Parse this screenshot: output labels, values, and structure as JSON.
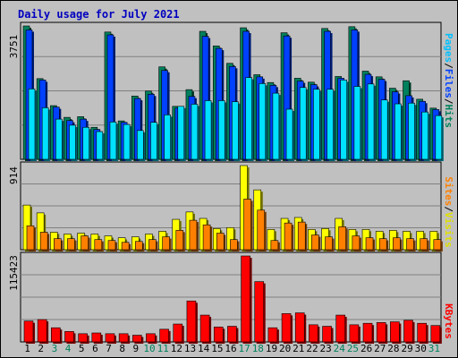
{
  "title": "Daily usage for July 2021",
  "colors": {
    "hits": "#00805c",
    "files": "#0040ff",
    "pages": "#00e0ff",
    "visits": "#ffff00",
    "sites": "#ff8000",
    "kbytes": "#ff0000",
    "weekend_day_label": "#00805c",
    "weekday_label": "#000000",
    "hits_label": "#00805c",
    "files_label": "#0040ff",
    "pages_label": "#00c0ff",
    "visits_label": "#e0e000",
    "sites_label": "#ff8000",
    "kbytes_label": "#ff0000"
  },
  "chart_data": [
    {
      "type": "bar",
      "panel": "top",
      "max_label": "3751",
      "ylim": [
        0,
        3751
      ],
      "legend_labels": [
        "Pages",
        "/",
        "Files",
        "/",
        "Hits"
      ],
      "categories": [
        "1",
        "2",
        "3",
        "4",
        "5",
        "6",
        "7",
        "8",
        "9",
        "10",
        "11",
        "12",
        "13",
        "14",
        "15",
        "16",
        "17",
        "18",
        "19",
        "20",
        "21",
        "22",
        "23",
        "24",
        "25",
        "26",
        "27",
        "28",
        "29",
        "30",
        "31"
      ],
      "series": [
        {
          "name": "Hits",
          "values": [
            3751,
            2270,
            1510,
            1180,
            1200,
            900,
            3580,
            1080,
            1780,
            1920,
            2600,
            1490,
            1960,
            3600,
            3190,
            2700,
            3700,
            2380,
            2160,
            3560,
            2280,
            2170,
            3680,
            2330,
            3730,
            2480,
            2320,
            2000,
            2210,
            1690,
            1440
          ]
        },
        {
          "name": "Files",
          "values": [
            3640,
            2230,
            1470,
            1090,
            1130,
            840,
            3500,
            1040,
            1710,
            1830,
            2500,
            1440,
            1770,
            3460,
            3120,
            2610,
            3600,
            2320,
            2080,
            3470,
            2200,
            2100,
            3600,
            2280,
            3640,
            2390,
            2250,
            1900,
            1790,
            1630,
            1400
          ]
        },
        {
          "name": "Pages",
          "values": [
            1980,
            1450,
            1130,
            960,
            900,
            780,
            1050,
            980,
            810,
            1040,
            1250,
            1490,
            1550,
            1650,
            1650,
            1620,
            2300,
            2130,
            1860,
            1410,
            2020,
            1970,
            1970,
            2230,
            2050,
            2120,
            1670,
            1560,
            1580,
            1330,
            1230
          ]
        }
      ]
    },
    {
      "type": "bar",
      "panel": "middle",
      "max_label": "914",
      "ylim": [
        0,
        914
      ],
      "legend_labels": [
        "Sites",
        "/",
        "Visits"
      ],
      "categories": [
        "1",
        "2",
        "3",
        "4",
        "5",
        "6",
        "7",
        "8",
        "9",
        "10",
        "11",
        "12",
        "13",
        "14",
        "15",
        "16",
        "17",
        "18",
        "19",
        "20",
        "21",
        "22",
        "23",
        "24",
        "25",
        "26",
        "27",
        "28",
        "29",
        "30",
        "31"
      ],
      "series": [
        {
          "name": "Visits",
          "values": [
            485,
            400,
            190,
            170,
            180,
            170,
            150,
            130,
            140,
            170,
            200,
            330,
            410,
            340,
            230,
            240,
            914,
            650,
            220,
            340,
            350,
            220,
            230,
            340,
            220,
            220,
            200,
            210,
            200,
            200,
            200
          ]
        },
        {
          "name": "Sites",
          "values": [
            260,
            190,
            120,
            120,
            150,
            110,
            100,
            80,
            90,
            110,
            140,
            210,
            320,
            270,
            180,
            110,
            550,
            430,
            100,
            290,
            300,
            160,
            140,
            250,
            150,
            130,
            120,
            130,
            120,
            120,
            110
          ]
        }
      ]
    },
    {
      "type": "bar",
      "panel": "bottom",
      "max_label": "115423",
      "ylim": [
        0,
        115423
      ],
      "legend_labels": [
        "KBytes"
      ],
      "categories": [
        "1",
        "2",
        "3",
        "4",
        "5",
        "6",
        "7",
        "8",
        "9",
        "10",
        "11",
        "12",
        "13",
        "14",
        "15",
        "16",
        "17",
        "18",
        "19",
        "20",
        "21",
        "22",
        "23",
        "24",
        "25",
        "26",
        "27",
        "28",
        "29",
        "30",
        "31"
      ],
      "series": [
        {
          "name": "KBytes",
          "values": [
            28000,
            30000,
            19000,
            14000,
            11000,
            12000,
            11000,
            11000,
            9000,
            11000,
            17000,
            24000,
            55000,
            36000,
            20000,
            21000,
            115423,
            81000,
            19000,
            38000,
            39000,
            23000,
            21000,
            36000,
            23000,
            25000,
            26000,
            27000,
            29000,
            25000,
            22000
          ]
        }
      ]
    }
  ],
  "day_labels": [
    {
      "text": "1",
      "weekend": false
    },
    {
      "text": "2",
      "weekend": false
    },
    {
      "text": "3",
      "weekend": true
    },
    {
      "text": "4",
      "weekend": true
    },
    {
      "text": "5",
      "weekend": false
    },
    {
      "text": "6",
      "weekend": false
    },
    {
      "text": "7",
      "weekend": false
    },
    {
      "text": "8",
      "weekend": false
    },
    {
      "text": "9",
      "weekend": false
    },
    {
      "text": "10",
      "weekend": true
    },
    {
      "text": "11",
      "weekend": true
    },
    {
      "text": "12",
      "weekend": false
    },
    {
      "text": "13",
      "weekend": false
    },
    {
      "text": "14",
      "weekend": false
    },
    {
      "text": "15",
      "weekend": false
    },
    {
      "text": "16",
      "weekend": false
    },
    {
      "text": "17",
      "weekend": true
    },
    {
      "text": "18",
      "weekend": true
    },
    {
      "text": "19",
      "weekend": false
    },
    {
      "text": "20",
      "weekend": false
    },
    {
      "text": "21",
      "weekend": false
    },
    {
      "text": "22",
      "weekend": false
    },
    {
      "text": "23",
      "weekend": false
    },
    {
      "text": "24",
      "weekend": true
    },
    {
      "text": "25",
      "weekend": true
    },
    {
      "text": "26",
      "weekend": false
    },
    {
      "text": "27",
      "weekend": false
    },
    {
      "text": "28",
      "weekend": false
    },
    {
      "text": "29",
      "weekend": false
    },
    {
      "text": "30",
      "weekend": false
    },
    {
      "text": "31",
      "weekend": true
    }
  ]
}
